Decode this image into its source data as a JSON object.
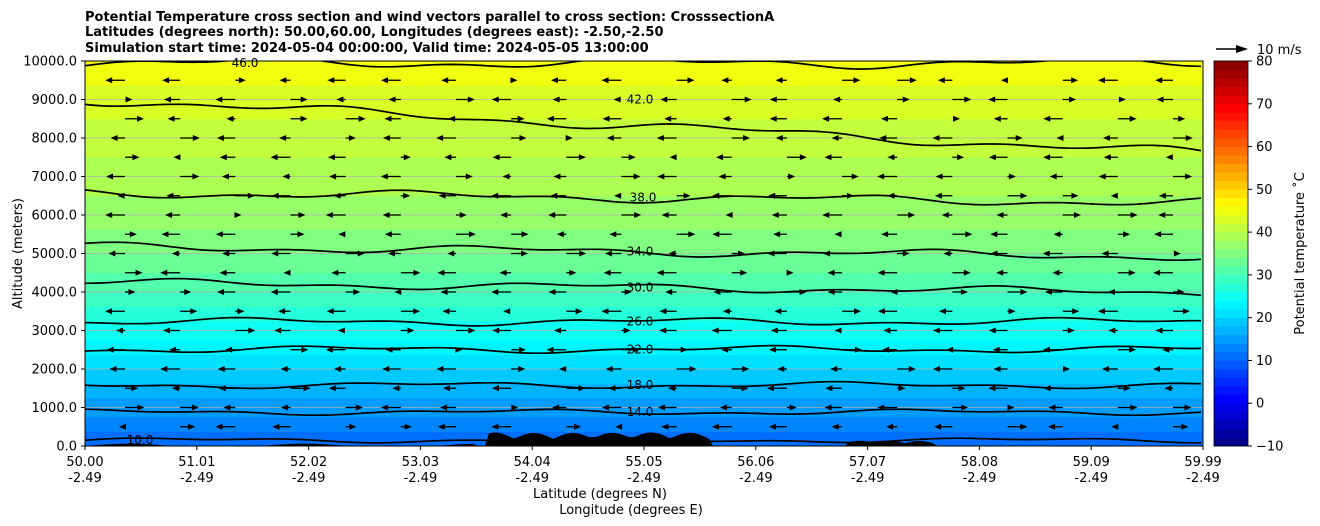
{
  "chart_data": {
    "type": "contourf",
    "title_lines": [
      "Potential Temperature cross section and wind vectors parallel to cross section: CrosssectionA",
      "Latitudes (degrees north): 50.00,60.00, Longitudes (degrees east): -2.50,-2.50",
      "Simulation start time: 2024-05-04 00:00:00, Valid time: 2024-05-05 13:00:00"
    ],
    "ylabel": "Altitude (meters)",
    "xlabel_lat": "Latitude (degrees N)",
    "xlabel_lon": "Longitude (degrees E)",
    "ylim": [
      0,
      10000
    ],
    "y_ticks": [
      "0.0",
      "1000.0",
      "2000.0",
      "3000.0",
      "4000.0",
      "5000.0",
      "6000.0",
      "7000.0",
      "8000.0",
      "9000.0",
      "10000.0"
    ],
    "x_ticks_lat": [
      "50.00",
      "51.01",
      "52.02",
      "53.03",
      "54.04",
      "55.05",
      "56.06",
      "57.07",
      "58.08",
      "59.09",
      "59.99"
    ],
    "x_ticks_lon": [
      "-2.49",
      "-2.49",
      "-2.49",
      "-2.49",
      "-2.49",
      "-2.49",
      "-2.49",
      "-2.49",
      "-2.49",
      "-2.49",
      "-2.49"
    ],
    "grid": "horizontal",
    "colorbar": {
      "label": "Potential temperature $^\\circ$C",
      "label_display": "Potential temperature ˚C",
      "range": [
        -10,
        80
      ],
      "ticks": [
        "−10",
        "0",
        "10",
        "20",
        "30",
        "40",
        "50",
        "60",
        "70",
        "80"
      ],
      "colormap": "jet"
    },
    "quiver_key": {
      "label": "10 m/s",
      "value": 10
    },
    "contour_levels": [
      {
        "label": "10.0",
        "altitude": 150
      },
      {
        "label": "14.0",
        "altitude": 880
      },
      {
        "label": "18.0",
        "altitude": 1580
      },
      {
        "label": "22.0",
        "altitude": 2510
      },
      {
        "label": "26.0",
        "altitude": 3230
      },
      {
        "label": "30.0",
        "altitude": 4120
      },
      {
        "label": "34.0",
        "altitude": 5050
      },
      {
        "label": "38.0",
        "altitude": 6450
      },
      {
        "label": "42.0",
        "altitude": 9000
      },
      {
        "label": "46.0",
        "altitude": 9950
      }
    ],
    "theta_profile": [
      {
        "altitude": 0,
        "theta": 10
      },
      {
        "altitude": 1000,
        "theta": 15
      },
      {
        "altitude": 2000,
        "theta": 20
      },
      {
        "altitude": 3000,
        "theta": 25
      },
      {
        "altitude": 4000,
        "theta": 30
      },
      {
        "altitude": 5000,
        "theta": 34
      },
      {
        "altitude": 6000,
        "theta": 37
      },
      {
        "altitude": 7000,
        "theta": 39
      },
      {
        "altitude": 8000,
        "theta": 41
      },
      {
        "altitude": 9000,
        "theta": 43
      },
      {
        "altitude": 10000,
        "theta": 46
      }
    ],
    "wind_vector_levels": [
      500,
      1000,
      1500,
      2000,
      2500,
      3000,
      3500,
      4000,
      4500,
      5000,
      5500,
      6000,
      6500,
      7000,
      7500,
      8000,
      8500,
      9000,
      9500
    ]
  }
}
